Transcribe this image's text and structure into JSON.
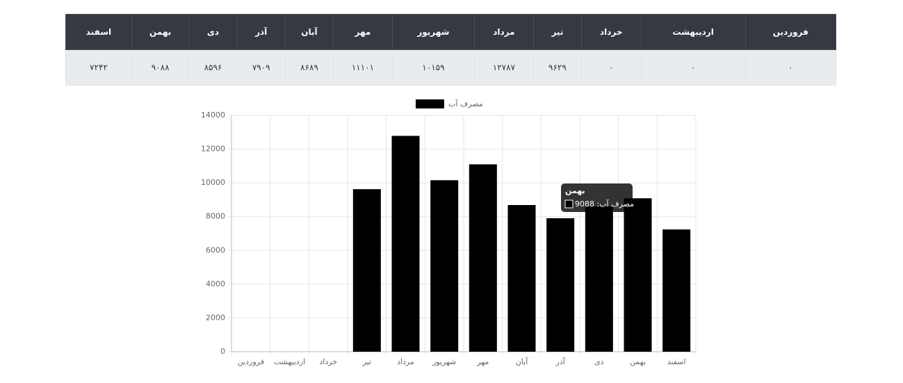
{
  "table": {
    "headers": [
      "فروردین",
      "اردیبهشت",
      "خرداد",
      "تیر",
      "مرداد",
      "شهریور",
      "مهر",
      "آبان",
      "آذر",
      "دی",
      "بهمن",
      "اسفند"
    ],
    "rows": [
      [
        "۰",
        "۰",
        "۰",
        "۹۶۲۹",
        "۱۲۷۸۷",
        "۱۰۱۵۹",
        "۱۱۱۰۱",
        "۸۶۸۹",
        "۷۹۰۹",
        "۸۵۹۶",
        "۹۰۸۸",
        "۷۲۴۲"
      ]
    ]
  },
  "chart_data": {
    "type": "bar",
    "categories": [
      "فروردین",
      "اردیبهشت",
      "خرداد",
      "تیر",
      "مرداد",
      "شهریور",
      "مهر",
      "آبان",
      "آذر",
      "دی",
      "بهمن",
      "اسفند"
    ],
    "series": [
      {
        "name": "مصرف آب",
        "color": "#000000",
        "values": [
          0,
          0,
          0,
          9629,
          12787,
          10159,
          11101,
          8689,
          7909,
          8596,
          9088,
          7242
        ]
      }
    ],
    "ylim": [
      0,
      14000
    ],
    "yticks": [
      0,
      2000,
      4000,
      6000,
      8000,
      10000,
      12000,
      14000
    ],
    "grid": true,
    "tooltip": {
      "title": "بهمن",
      "label": "مصرف آب: 9088"
    }
  }
}
